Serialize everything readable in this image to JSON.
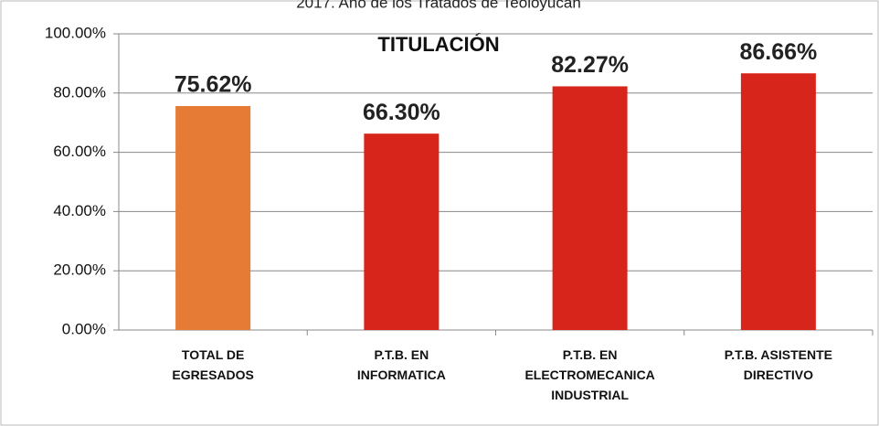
{
  "chart_data": {
    "type": "bar",
    "supertitle": "2017. Año de los Tratados de Teoloyucan",
    "title": "TITULACIÓN",
    "categories": [
      "TOTAL DE\nEGRESADOS",
      "P.T.B. EN\nINFORMATICA",
      "P.T.B. EN\nELECTROMECANICA\nINDUSTRIAL",
      "P.T.B. ASISTENTE\nDIRECTIVO"
    ],
    "values": [
      75.62,
      66.3,
      82.27,
      86.66
    ],
    "value_labels": [
      "75.62%",
      "66.30%",
      "82.27%",
      "86.66%"
    ],
    "colors": [
      "#e57b35",
      "#d8251b",
      "#d8251b",
      "#d8251b"
    ],
    "ylim": [
      0,
      100
    ],
    "yticks": [
      {
        "value": 0,
        "label": "0.00%"
      },
      {
        "value": 20,
        "label": "20.00%"
      },
      {
        "value": 40,
        "label": "40.00%"
      },
      {
        "value": 60,
        "label": "60.00%"
      },
      {
        "value": 80,
        "label": "80.00%"
      },
      {
        "value": 100,
        "label": "100.00%"
      }
    ],
    "grid": true
  }
}
